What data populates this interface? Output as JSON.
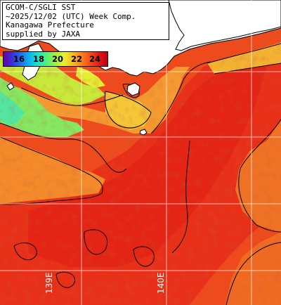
{
  "title": {
    "lines": [
      "GCOM-C/SGLI SST",
      "~2025/12/02 (UTC) Week Comp.",
      "Kanagawa Prefecture",
      "supplied by JAXA"
    ]
  },
  "colorbar": {
    "ticks": [
      "16",
      "18",
      "20",
      "22",
      "24"
    ],
    "min": 14.5,
    "max": 25.5
  },
  "graticule": {
    "lon_labels": [
      "139E",
      "140E"
    ]
  },
  "colors": {
    "land": "#ffffff",
    "coast": "#000000",
    "grid": "#ffffff"
  }
}
